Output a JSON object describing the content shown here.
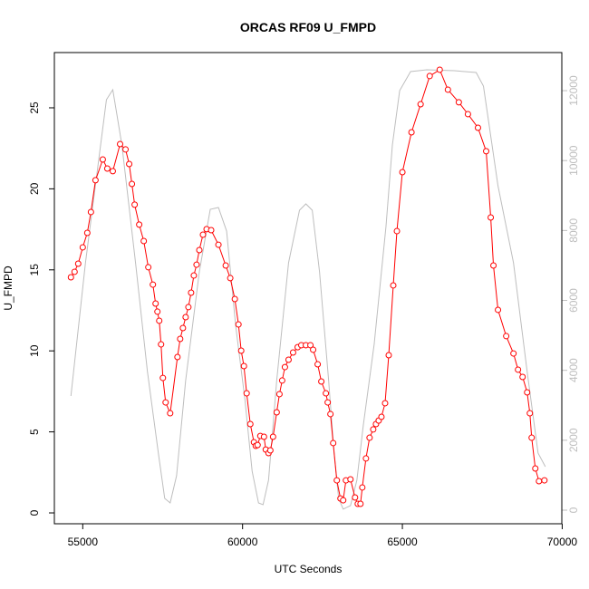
{
  "chart_data": {
    "type": "line",
    "title": "ORCAS RF09 U_FMPD",
    "x_label": "UTC Seconds",
    "y_label": "U_FMPD",
    "xlim": [
      54112,
      69988
    ],
    "xticks": [
      55000,
      60000,
      65000,
      70000
    ],
    "ylim": [
      -0.67,
      28.41
    ],
    "yticks": [
      0,
      5,
      10,
      15,
      20,
      25
    ],
    "y2lim": [
      -389,
      13090
    ],
    "y2ticks": [
      0,
      2000,
      4000,
      6000,
      8000,
      10000,
      12000
    ],
    "y2_color": "#bebebe",
    "series": [
      {
        "color": "#ff0000",
        "marker": "circle",
        "x": [
          54630,
          54744,
          54858,
          55000,
          55142,
          55256,
          55399,
          55627,
          55769,
          55940,
          56168,
          56339,
          56453,
          56538,
          56624,
          56766,
          56909,
          57051,
          57194,
          57279,
          57336,
          57393,
          57450,
          57507,
          57593,
          57735,
          57963,
          58048,
          58134,
          58219,
          58305,
          58390,
          58476,
          58561,
          58647,
          58761,
          58875,
          59017,
          59245,
          59473,
          59615,
          59758,
          59872,
          59957,
          60043,
          60128,
          60242,
          60356,
          60413,
          60470,
          60556,
          60670,
          60726,
          60812,
          60869,
          60954,
          61068,
          61154,
          61239,
          61325,
          61439,
          61581,
          61724,
          61838,
          61980,
          62123,
          62208,
          62350,
          62464,
          62607,
          62664,
          62749,
          62835,
          62949,
          63063,
          63148,
          63234,
          63376,
          63519,
          63604,
          63689,
          63746,
          63860,
          63974,
          64088,
          64174,
          64259,
          64345,
          64459,
          64573,
          64715,
          64829,
          65000,
          65285,
          65570,
          65855,
          66168,
          66424,
          66766,
          67051,
          67365,
          67621,
          67764,
          67849,
          67991,
          68248,
          68476,
          68618,
          68761,
          68903,
          68988,
          69045,
          69159,
          69273,
          69444
        ],
        "values": [
          14.54,
          14.88,
          15.38,
          16.39,
          17.28,
          18.57,
          20.53,
          21.81,
          21.25,
          21.09,
          22.76,
          22.43,
          21.53,
          20.3,
          19.02,
          17.79,
          16.78,
          15.16,
          14.09,
          12.92,
          12.42,
          11.86,
          10.4,
          8.33,
          6.82,
          6.15,
          9.62,
          10.74,
          11.41,
          12.08,
          12.7,
          13.59,
          14.65,
          15.32,
          16.22,
          17.17,
          17.51,
          17.45,
          16.55,
          15.27,
          14.49,
          13.2,
          11.63,
          10.01,
          9.06,
          7.38,
          5.48,
          4.36,
          4.14,
          4.19,
          4.75,
          4.7,
          3.91,
          3.69,
          3.86,
          4.7,
          6.21,
          7.33,
          8.17,
          9.0,
          9.45,
          9.9,
          10.23,
          10.35,
          10.35,
          10.35,
          10.07,
          9.17,
          8.11,
          7.38,
          6.82,
          6.1,
          4.31,
          2.01,
          0.89,
          0.78,
          2.01,
          2.07,
          0.95,
          0.56,
          0.56,
          1.57,
          3.36,
          4.64,
          5.15,
          5.48,
          5.7,
          5.93,
          6.77,
          9.73,
          14.04,
          17.39,
          21.03,
          23.49,
          25.22,
          26.96,
          27.35,
          26.12,
          25.34,
          24.61,
          23.77,
          22.32,
          18.23,
          15.27,
          12.53,
          10.91,
          9.84,
          8.84,
          8.39,
          7.44,
          6.15,
          4.64,
          2.74,
          1.96,
          2.01
        ]
      },
      {
        "color": "#bebebe",
        "axis": "y2",
        "x": [
          54630,
          55085,
          55741,
          55940,
          56225,
          56652,
          57023,
          57365,
          57564,
          57735,
          57935,
          58219,
          58647,
          58989,
          59245,
          59501,
          59786,
          60071,
          60299,
          60499,
          60641,
          60812,
          61068,
          61439,
          61781,
          61980,
          62180,
          62408,
          62693,
          62863,
          63006,
          63148,
          63376,
          63576,
          63775,
          64117,
          64487,
          64687,
          64915,
          65256,
          65769,
          66624,
          67308,
          67536,
          67764,
          67991,
          68476,
          68903,
          69245,
          69473
        ],
        "values": [
          3266,
          7076,
          11742,
          12027,
          10446,
          7076,
          3966,
          1633,
          337,
          207,
          985,
          3707,
          6817,
          8605,
          8657,
          7983,
          5262,
          3188,
          1115,
          207,
          156,
          855,
          3707,
          7076,
          8580,
          8761,
          8580,
          6817,
          3707,
          1633,
          337,
          30,
          130,
          855,
          2411,
          4743,
          8113,
          10446,
          12001,
          12545,
          12597,
          12571,
          12519,
          12131,
          10705,
          9279,
          7076,
          3966,
          1633,
          1244
        ]
      }
    ]
  }
}
